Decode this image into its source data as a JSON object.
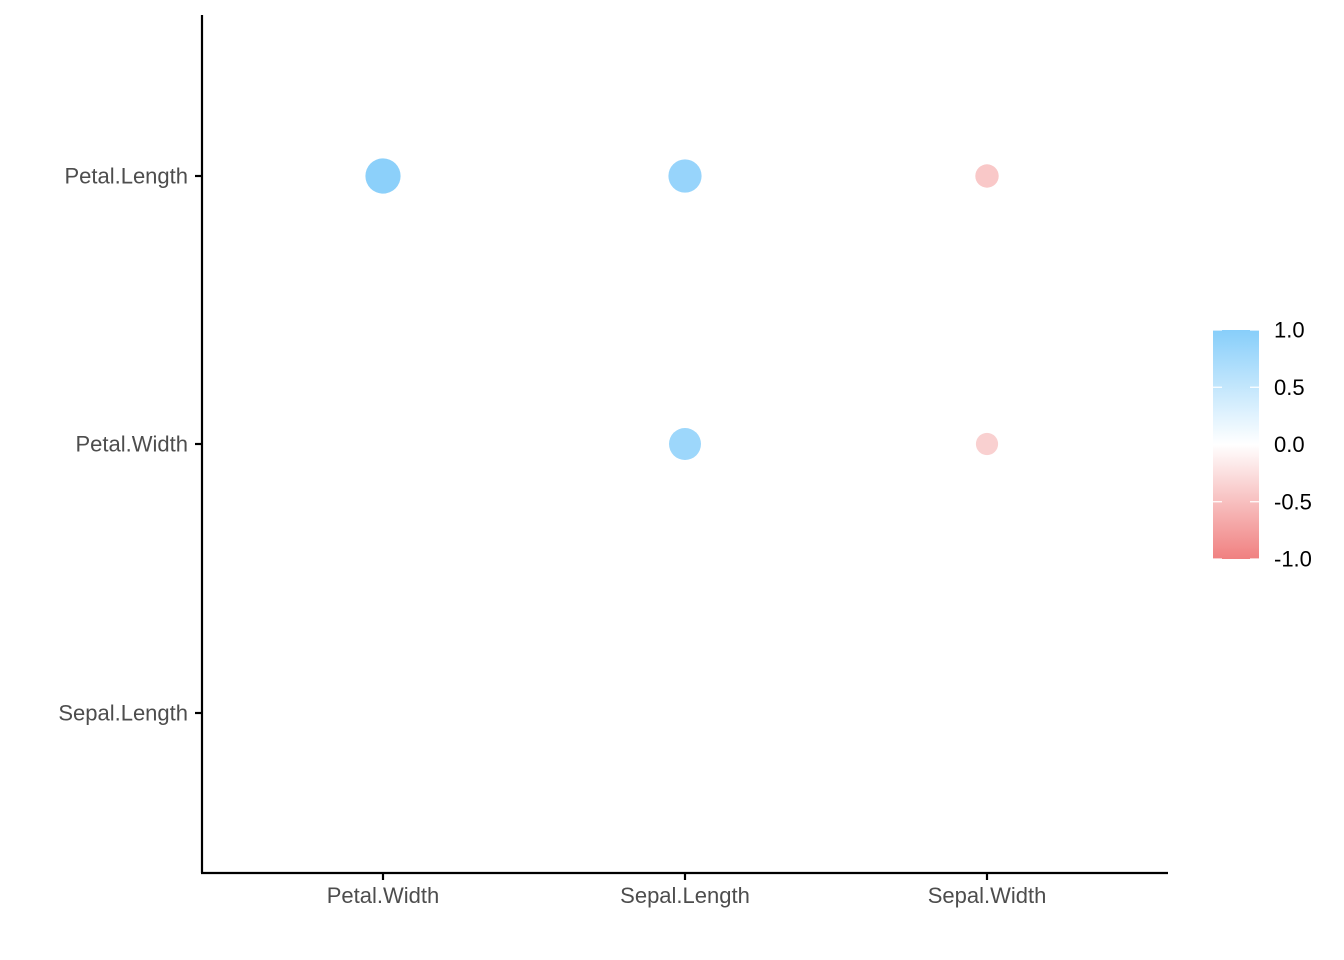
{
  "chart_data": {
    "type": "scatter",
    "subtype": "correlation-matrix (circle, lower triangle)",
    "title": "",
    "xlabel": "",
    "ylabel": "",
    "x_categories": [
      "Petal.Width",
      "Sepal.Length",
      "Sepal.Width"
    ],
    "y_categories": [
      "Petal.Length",
      "Petal.Width",
      "Sepal.Length"
    ],
    "points": [
      {
        "x": "Petal.Width",
        "y": "Petal.Length",
        "value": 0.96
      },
      {
        "x": "Sepal.Length",
        "y": "Petal.Length",
        "value": 0.87
      },
      {
        "x": "Sepal.Width",
        "y": "Petal.Length",
        "value": -0.43
      },
      {
        "x": "Sepal.Length",
        "y": "Petal.Width",
        "value": 0.82
      },
      {
        "x": "Sepal.Width",
        "y": "Petal.Width",
        "value": -0.37
      }
    ],
    "legend": {
      "position": "right",
      "range": [
        -1.0,
        1.0
      ],
      "tick_labels": [
        "1.0",
        "0.5",
        "0.0",
        "-0.5",
        "-1.0"
      ],
      "tick_values": [
        1.0,
        0.5,
        0.0,
        -0.5,
        -1.0
      ],
      "high_color": "#87CEFA",
      "mid_color": "#FFFFFF",
      "low_color": "#F08080"
    },
    "grid": false
  }
}
